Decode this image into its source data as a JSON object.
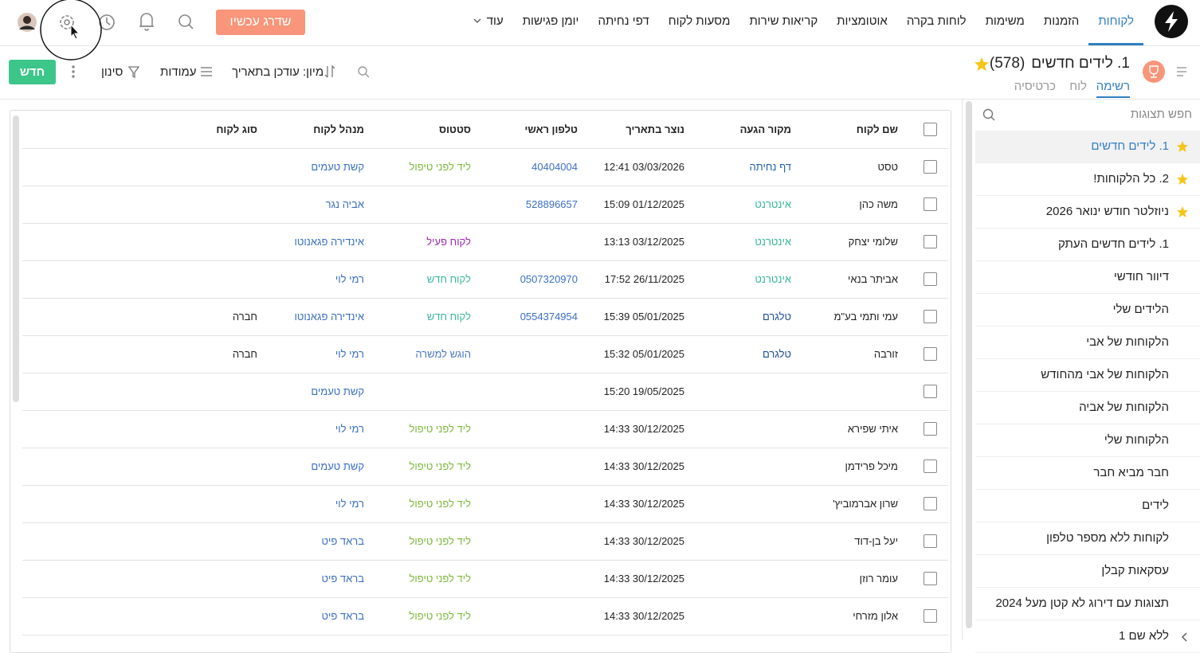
{
  "nav": {
    "items": [
      "לקוחות",
      "הזמנות",
      "משימות",
      "לוחות בקרה",
      "אוטומציות",
      "קריאות שירות",
      "מסעות לקוח",
      "דפי נחיתה",
      "יומן פגישות",
      "עוד"
    ],
    "active": 0,
    "upgrade": "שדרג עכשיו"
  },
  "view": {
    "title": "1. לידים חדשים",
    "count": "(578)",
    "tabs": [
      "רשימה",
      "לוח",
      "כרטיסיה"
    ],
    "active_tab": 0,
    "toolbar": {
      "new": "חדש",
      "filter": "סינון",
      "columns": "עמודות",
      "sort": "מיון: עודכן בתאריך"
    }
  },
  "sidebar": {
    "search": "חפש תצוגות",
    "selected": 0,
    "items": [
      {
        "label": "1. לידים חדשים",
        "starred": true
      },
      {
        "label": "2. כל הלקוחות!",
        "starred": true
      },
      {
        "label": "ניוזלטר חודש ינואר 2026",
        "starred": true
      },
      {
        "label": "1. לידים חדשים העתק",
        "starred": false
      },
      {
        "label": "דיוור חודשי",
        "starred": false
      },
      {
        "label": "הלידים שלי",
        "starred": false
      },
      {
        "label": "הלקוחות של אבי",
        "starred": false
      },
      {
        "label": "הלקוחות של אבי מהחודש",
        "starred": false
      },
      {
        "label": "הלקוחות של אביה",
        "starred": false
      },
      {
        "label": "הלקוחות שלי",
        "starred": false
      },
      {
        "label": "חבר מביא חבר",
        "starred": false
      },
      {
        "label": "לידים",
        "starred": false
      },
      {
        "label": "לקוחות ללא מספר טלפון",
        "starred": false
      },
      {
        "label": "עסקאות קבלן",
        "starred": false
      },
      {
        "label": "תצוגות עם דירוג לא קטן מעל 2024",
        "starred": false
      },
      {
        "label": "ללא שם 1",
        "starred": false
      }
    ]
  },
  "table": {
    "columns": [
      "שם לקוח",
      "מקור הגעה",
      "נוצר בתאריך",
      "טלפון ראשי",
      "סטטוס",
      "מנהל לקוח",
      "סוג לקוח"
    ],
    "tag_colors": {
      "דף נחיתה": "#1f5fae",
      "אינטרנט": "#35b89a",
      "טלגרם": "#1d4f9c",
      "ליד לפני טיפול": "#7cb93a",
      "לקוח פעיל": "#9c27b0",
      "לקוח חדש": "#3bb8a0",
      "הוגש למשרה": "#4a78c4"
    },
    "rows": [
      [
        "טסט",
        "דף נחיתה",
        "12:41 03/03/2026",
        "40404004",
        "ליד לפני טיפול",
        "קשת טעמים",
        null
      ],
      [
        "משה כהן",
        "אינטרנט",
        "15:09 01/12/2025",
        "528896657",
        null,
        "אביה נגר",
        null
      ],
      [
        "שלומי יצחק",
        "אינטרנט",
        "13:13 03/12/2025",
        null,
        "לקוח פעיל",
        "אינדירה פגאנוטו",
        null
      ],
      [
        "אביתר בנאי",
        "אינטרנט",
        "17:52 26/11/2025",
        "0507320970",
        "לקוח חדש",
        "רמי לוי",
        null
      ],
      [
        "עמי ותמי בע\"מ",
        "טלגרם",
        "15:39 05/01/2025",
        "0554374954",
        "לקוח חדש",
        "אינדירה פגאנוטו",
        "חברה"
      ],
      [
        "זורבה",
        "טלגרם",
        "15:32 05/01/2025",
        null,
        "הוגש למשרה",
        "רמי לוי",
        "חברה"
      ],
      [
        null,
        null,
        "15:20 19/05/2025",
        null,
        null,
        "קשת טעמים",
        null
      ],
      [
        "איתי שפירא",
        null,
        "14:33 30/12/2025",
        null,
        "ליד לפני טיפול",
        "רמי לוי",
        null
      ],
      [
        "מיכל פרידמן",
        null,
        "14:33 30/12/2025",
        null,
        "ליד לפני טיפול",
        "קשת טעמים",
        null
      ],
      [
        "שרון אברמוביץ'",
        null,
        "14:33 30/12/2025",
        null,
        "ליד לפני טיפול",
        "רמי לוי",
        null
      ],
      [
        "יעל בן-דוד",
        null,
        "14:33 30/12/2025",
        null,
        "ליד לפני טיפול",
        "בראד פיט",
        null
      ],
      [
        "עומר רוזן",
        null,
        "14:33 30/12/2025",
        null,
        "ליד לפני טיפול",
        "בראד פיט",
        null
      ],
      [
        "אלון מזרחי",
        null,
        "14:33 30/12/2025",
        null,
        "ליד לפני טיפול",
        "בראד פיט",
        null
      ]
    ]
  }
}
